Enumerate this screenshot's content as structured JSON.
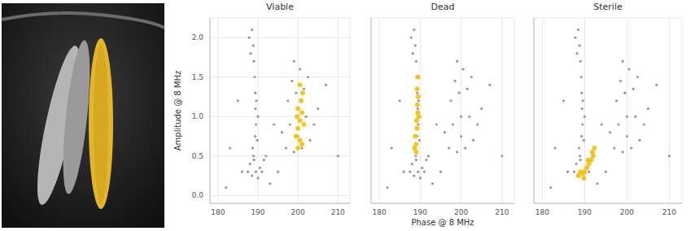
{
  "chart_data": [
    {
      "type": "scatter",
      "title": "Viable",
      "ylabel": "Amplitude @ 8 MHz",
      "xlim": [
        178,
        213
      ],
      "xticks": [
        180,
        190,
        200,
        210
      ],
      "ylim": [
        -0.1,
        2.25
      ],
      "yticks": [
        {
          "value": 0,
          "label": "0.0"
        },
        0.5,
        {
          "value": 1,
          "label": "1.0"
        },
        1.5,
        {
          "value": 2,
          "label": "2.0"
        }
      ],
      "grid": true,
      "series": [
        {
          "color": "#8c8c8c",
          "x": [
            188.5,
            188.8,
            189,
            189.2,
            189.3,
            189.4,
            189.5,
            189.3,
            188.7,
            189.8,
            188.2,
            189.6,
            190,
            188.9,
            187.8,
            187.5,
            188.5,
            189.5,
            190.5,
            191.5,
            188,
            190,
            191,
            189,
            192,
            197,
            199,
            201,
            203,
            198,
            200,
            202,
            204,
            197.5,
            199.5,
            201.5,
            200.5,
            199,
            202.5,
            196,
            205,
            200,
            198.5,
            183,
            185,
            193,
            195,
            207,
            210,
            182,
            194,
            186
          ],
          "values": [
            2.1,
            1.9,
            1.7,
            1.5,
            1.3,
            1.1,
            0.9,
            0.75,
            0.6,
            0.7,
            1.8,
            1.2,
            1.0,
            0.5,
            2.0,
            0.3,
            0.25,
            0.3,
            0.35,
            0.45,
            0.4,
            0.22,
            0.3,
            0.45,
            0.5,
            0.6,
            0.55,
            0.6,
            0.7,
            0.9,
            1.0,
            1.0,
            0.9,
            1.2,
            1.3,
            1.35,
            1.6,
            1.7,
            1.5,
            0.8,
            1.1,
            0.75,
            1.45,
            0.6,
            1.2,
            0.15,
            0.3,
            1.4,
            0.5,
            0.1,
            0.9,
            0.3
          ]
        },
        {
          "color": "#f2c31b",
          "x": [
            200,
            200.5,
            199.5,
            201,
            200,
            200.5,
            201,
            200,
            200.8,
            201.2,
            200.5,
            199.8,
            201.5
          ],
          "values": [
            0.6,
            0.7,
            0.75,
            0.65,
            0.85,
            0.95,
            1.05,
            1.1,
            1.2,
            1.3,
            1.4,
            1.0,
            0.9
          ]
        }
      ]
    },
    {
      "type": "scatter",
      "title": "Dead",
      "xlabel": "Phase @ 8 MHz",
      "xlim": [
        178,
        213
      ],
      "xticks": [
        180,
        190,
        200,
        210
      ],
      "ylim": [
        -0.1,
        2.25
      ],
      "yticks": [
        {
          "value": 0,
          "label": "0.0"
        },
        0.5,
        {
          "value": 1,
          "label": "1.0"
        },
        1.5,
        {
          "value": 2,
          "label": "2.0"
        }
      ],
      "grid": true,
      "tick_labels": "x",
      "series": [
        {
          "color": "#8c8c8c",
          "x": [
            188.5,
            188.8,
            189,
            189.2,
            189.3,
            189.4,
            189.5,
            189.3,
            188.7,
            189.8,
            188.2,
            189.6,
            190,
            188.9,
            187.8,
            187.5,
            188.5,
            189.5,
            190.5,
            191.5,
            188,
            190,
            191,
            189,
            192,
            197,
            199,
            201,
            203,
            198,
            200,
            202,
            204,
            197.5,
            199.5,
            201.5,
            200.5,
            199,
            202.5,
            196,
            205,
            200,
            198.5,
            183,
            185,
            193,
            195,
            207,
            210,
            182,
            194,
            186
          ],
          "values": [
            2.1,
            1.9,
            1.7,
            1.5,
            1.3,
            1.1,
            0.9,
            0.75,
            0.6,
            0.7,
            1.8,
            1.2,
            1.0,
            0.5,
            2.0,
            0.3,
            0.25,
            0.3,
            0.35,
            0.45,
            0.4,
            0.22,
            0.3,
            0.45,
            0.5,
            0.6,
            0.55,
            0.6,
            0.7,
            0.9,
            1.0,
            1.0,
            0.9,
            1.2,
            1.3,
            1.35,
            1.6,
            1.7,
            1.5,
            0.8,
            1.1,
            0.75,
            1.45,
            0.6,
            1.2,
            0.15,
            0.3,
            1.4,
            0.5,
            0.1,
            0.9,
            0.3
          ]
        },
        {
          "color": "#f2c31b",
          "x": [
            188.6,
            189,
            188.8,
            189.2,
            189.1,
            189.4,
            189.3,
            189.5,
            189.2,
            189.4,
            189.0,
            189.6
          ],
          "values": [
            0.6,
            0.65,
            0.75,
            0.85,
            0.95,
            1.05,
            1.15,
            1.25,
            1.35,
            1.5,
            0.55,
            1.0
          ]
        }
      ]
    },
    {
      "type": "scatter",
      "title": "Sterile",
      "xlim": [
        178,
        213
      ],
      "xticks": [
        180,
        190,
        200,
        210
      ],
      "ylim": [
        -0.1,
        2.25
      ],
      "yticks": [
        {
          "value": 0,
          "label": "0.0"
        },
        0.5,
        {
          "value": 1,
          "label": "1.0"
        },
        1.5,
        {
          "value": 2,
          "label": "2.0"
        }
      ],
      "grid": true,
      "tick_labels": "x",
      "series": [
        {
          "color": "#8c8c8c",
          "x": [
            188.5,
            188.8,
            189,
            189.2,
            189.3,
            189.4,
            189.5,
            189.3,
            188.7,
            189.8,
            188.2,
            189.6,
            190,
            188.9,
            187.8,
            187.5,
            188.5,
            189.5,
            190.5,
            191.5,
            188,
            190,
            191,
            189,
            192,
            197,
            199,
            201,
            203,
            198,
            200,
            202,
            204,
            197.5,
            199.5,
            201.5,
            200.5,
            199,
            202.5,
            196,
            205,
            200,
            198.5,
            183,
            185,
            193,
            195,
            207,
            210,
            182,
            194,
            186
          ],
          "values": [
            2.1,
            1.9,
            1.7,
            1.5,
            1.3,
            1.1,
            0.9,
            0.75,
            0.6,
            0.7,
            1.8,
            1.2,
            1.0,
            0.5,
            2.0,
            0.3,
            0.25,
            0.3,
            0.35,
            0.45,
            0.4,
            0.22,
            0.3,
            0.45,
            0.5,
            0.6,
            0.55,
            0.6,
            0.7,
            0.9,
            1.0,
            1.0,
            0.9,
            1.2,
            1.3,
            1.35,
            1.6,
            1.7,
            1.5,
            0.8,
            1.1,
            0.75,
            1.45,
            0.6,
            1.2,
            0.15,
            0.3,
            1.4,
            0.5,
            0.1,
            0.9,
            0.3
          ]
        },
        {
          "color": "#f2c31b",
          "x": [
            188.5,
            189,
            189.5,
            190,
            190.5,
            191,
            191.5,
            192,
            191.8,
            190.8,
            189.8,
            192.3
          ],
          "values": [
            0.25,
            0.3,
            0.28,
            0.3,
            0.35,
            0.4,
            0.45,
            0.5,
            0.55,
            0.45,
            0.22,
            0.6
          ]
        }
      ]
    }
  ]
}
